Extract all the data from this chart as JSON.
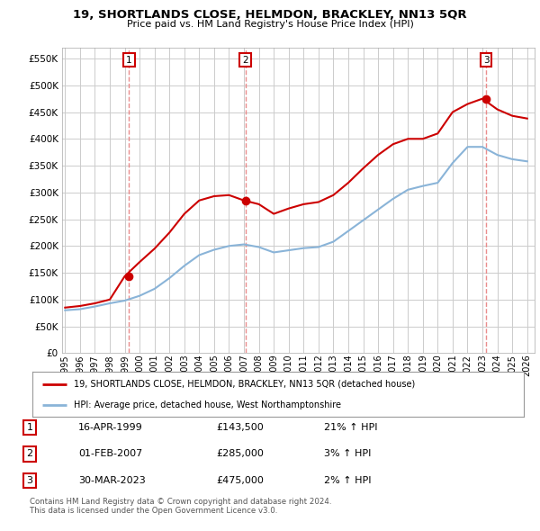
{
  "title": "19, SHORTLANDS CLOSE, HELMDON, BRACKLEY, NN13 5QR",
  "subtitle": "Price paid vs. HM Land Registry's House Price Index (HPI)",
  "ylabel_values": [
    0,
    50000,
    100000,
    150000,
    200000,
    250000,
    300000,
    350000,
    400000,
    450000,
    500000,
    550000
  ],
  "ylim": [
    0,
    570000
  ],
  "xlim_start": 1994.8,
  "xlim_end": 2026.5,
  "legend_line1": "19, SHORTLANDS CLOSE, HELMDON, BRACKLEY, NN13 5QR (detached house)",
  "legend_line2": "HPI: Average price, detached house, West Northamptonshire",
  "sale_dates": [
    "16-APR-1999",
    "01-FEB-2007",
    "30-MAR-2023"
  ],
  "sale_prices": [
    143500,
    285000,
    475000
  ],
  "sale_hpi_pct": [
    "21%",
    "3%",
    "2%"
  ],
  "sale_years": [
    1999.29,
    2007.09,
    2023.25
  ],
  "footer1": "Contains HM Land Registry data © Crown copyright and database right 2024.",
  "footer2": "This data is licensed under the Open Government Licence v3.0.",
  "hpi_color": "#8ab4d8",
  "property_color": "#cc0000",
  "vline_color": "#e88080",
  "background_color": "#ffffff",
  "grid_color": "#cccccc",
  "hpi_years": [
    1995,
    1996,
    1997,
    1998,
    1999,
    2000,
    2001,
    2002,
    2003,
    2004,
    2005,
    2006,
    2007,
    2008,
    2009,
    2010,
    2011,
    2012,
    2013,
    2014,
    2015,
    2016,
    2017,
    2018,
    2019,
    2020,
    2021,
    2022,
    2023,
    2024,
    2025,
    2026
  ],
  "hpi_values": [
    80000,
    82000,
    87000,
    93000,
    98000,
    107000,
    120000,
    140000,
    163000,
    183000,
    193000,
    200000,
    203000,
    198000,
    188000,
    192000,
    196000,
    198000,
    208000,
    228000,
    248000,
    268000,
    288000,
    305000,
    312000,
    318000,
    355000,
    385000,
    385000,
    370000,
    362000,
    358000
  ],
  "prop_years": [
    1995,
    1996,
    1997,
    1998,
    1999,
    2000,
    2001,
    2002,
    2003,
    2004,
    2005,
    2006,
    2007,
    2008,
    2009,
    2010,
    2011,
    2012,
    2013,
    2014,
    2015,
    2016,
    2017,
    2018,
    2019,
    2020,
    2021,
    2022,
    2023,
    2024,
    2025,
    2026
  ],
  "prop_values": [
    85000,
    88000,
    93000,
    100000,
    143500,
    170000,
    195000,
    225000,
    260000,
    285000,
    293000,
    295000,
    285000,
    278000,
    260000,
    270000,
    278000,
    282000,
    295000,
    318000,
    345000,
    370000,
    390000,
    400000,
    400000,
    410000,
    450000,
    465000,
    475000,
    455000,
    443000,
    438000
  ],
  "x_tick_start": 1995,
  "x_tick_end": 2027
}
